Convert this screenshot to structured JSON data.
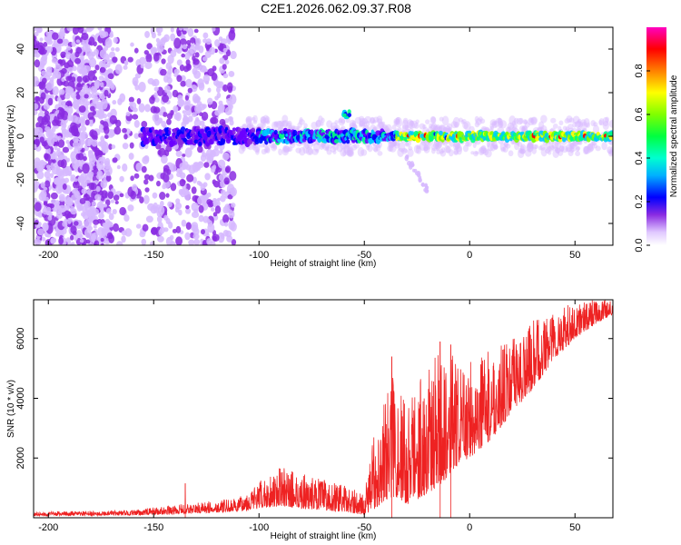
{
  "title": "C2E1.2026.062.09.37.R08",
  "chart_data": [
    {
      "type": "heatmap",
      "name": "spectrogram",
      "xlabel": "Height of straight line (km)",
      "ylabel": "Frequency (Hz)",
      "xlim": [
        -207,
        68
      ],
      "ylim": [
        -50,
        50
      ],
      "xticks": [
        -200,
        -150,
        -100,
        -50,
        0,
        50
      ],
      "yticks": [
        -40,
        -20,
        0,
        20,
        40
      ],
      "colorbar": {
        "label": "Normalized spectral amplitude",
        "range": [
          0,
          1
        ],
        "ticks": [
          0.0,
          0.2,
          0.4,
          0.6,
          0.8
        ],
        "tick_labels": [
          "0.0",
          "0.2",
          "0.4",
          "0.6",
          "0.8"
        ],
        "colormap": [
          "#ffffff",
          "#d6b8ff",
          "#8a2be2",
          "#6a00ff",
          "#0000ff",
          "#00c8ff",
          "#00ff80",
          "#80ff00",
          "#ffff00",
          "#ff8000",
          "#ff0000",
          "#ff00ff"
        ]
      },
      "features": {
        "noise_region_x": [
          -207,
          -112
        ],
        "signal_onset_x": -155,
        "carrier_frequency_hz": 0,
        "strong_signal_from_x": -35,
        "side_tone": {
          "x": [
            -60,
            -57
          ],
          "freq_hz": 10
        },
        "drift_tail": {
          "x": [
            -30,
            -20
          ],
          "freq_hz": [
            -10,
            -25
          ]
        }
      }
    },
    {
      "type": "line",
      "name": "snr",
      "xlabel": "Height of straight line (km)",
      "ylabel": "SNR (10 * v/v)",
      "xlim": [
        -207,
        68
      ],
      "ylim": [
        0,
        7300
      ],
      "xticks": [
        -200,
        -150,
        -100,
        -50,
        0,
        50
      ],
      "yticks": [
        2000,
        4000,
        6000
      ],
      "color": "#ee2222",
      "envelope": {
        "x": [
          -207,
          -160,
          -150,
          -130,
          -110,
          -100,
          -90,
          -80,
          -70,
          -60,
          -50,
          -45,
          -40,
          -35,
          -30,
          -25,
          -20,
          -15,
          -10,
          -5,
          0,
          10,
          20,
          25,
          30,
          40,
          50,
          60,
          68
        ],
        "low": [
          60,
          80,
          100,
          150,
          200,
          300,
          400,
          300,
          250,
          200,
          100,
          300,
          600,
          700,
          400,
          600,
          800,
          1000,
          1400,
          1800,
          2000,
          2600,
          3500,
          3900,
          4300,
          5300,
          6000,
          6500,
          6800
        ],
        "high": [
          200,
          250,
          350,
          500,
          650,
          1200,
          1700,
          1500,
          1300,
          1100,
          800,
          3000,
          4100,
          5200,
          3800,
          4800,
          5000,
          5600,
          5800,
          5000,
          5300,
          5600,
          6000,
          6200,
          6600,
          7000,
          7200,
          7300,
          7300
        ]
      },
      "spikes": [
        {
          "x": -135,
          "y": 1150
        },
        {
          "x": -37,
          "y": 5400
        },
        {
          "x": -14,
          "y": 5900
        },
        {
          "x": -9,
          "y": 5800
        }
      ]
    }
  ]
}
